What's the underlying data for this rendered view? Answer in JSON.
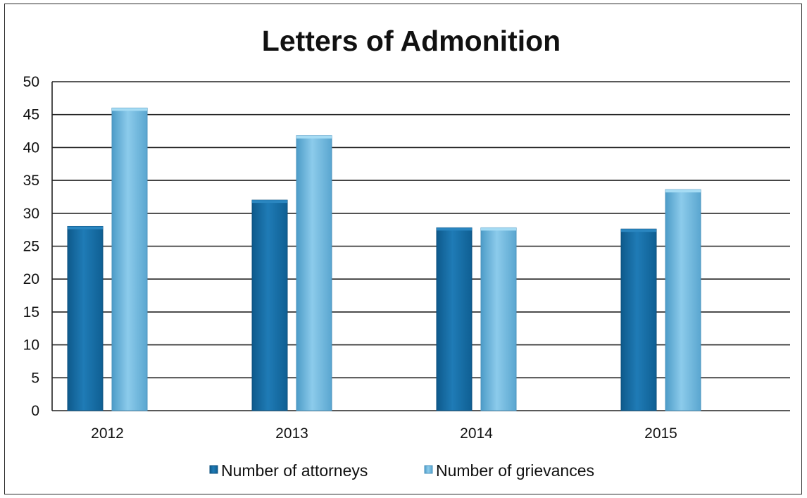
{
  "chart_data": {
    "type": "bar",
    "title": "Letters of Admonition",
    "xlabel": "",
    "ylabel": "",
    "categories": [
      "2012",
      "2013",
      "2014",
      "2015"
    ],
    "series": [
      {
        "name": "Number of attorneys",
        "values": [
          28,
          32,
          27.8,
          27.6
        ],
        "color": "#1a6fa8"
      },
      {
        "name": "Number of grievances",
        "values": [
          46,
          41.8,
          27.8,
          33.6
        ],
        "color": "#6ab4dc"
      }
    ],
    "ylim": [
      0,
      50
    ],
    "yticks": [
      "0",
      "5",
      "10",
      "15",
      "20",
      "25",
      "30",
      "35",
      "40",
      "45",
      "50"
    ],
    "grid": true,
    "legend_position": "bottom"
  }
}
